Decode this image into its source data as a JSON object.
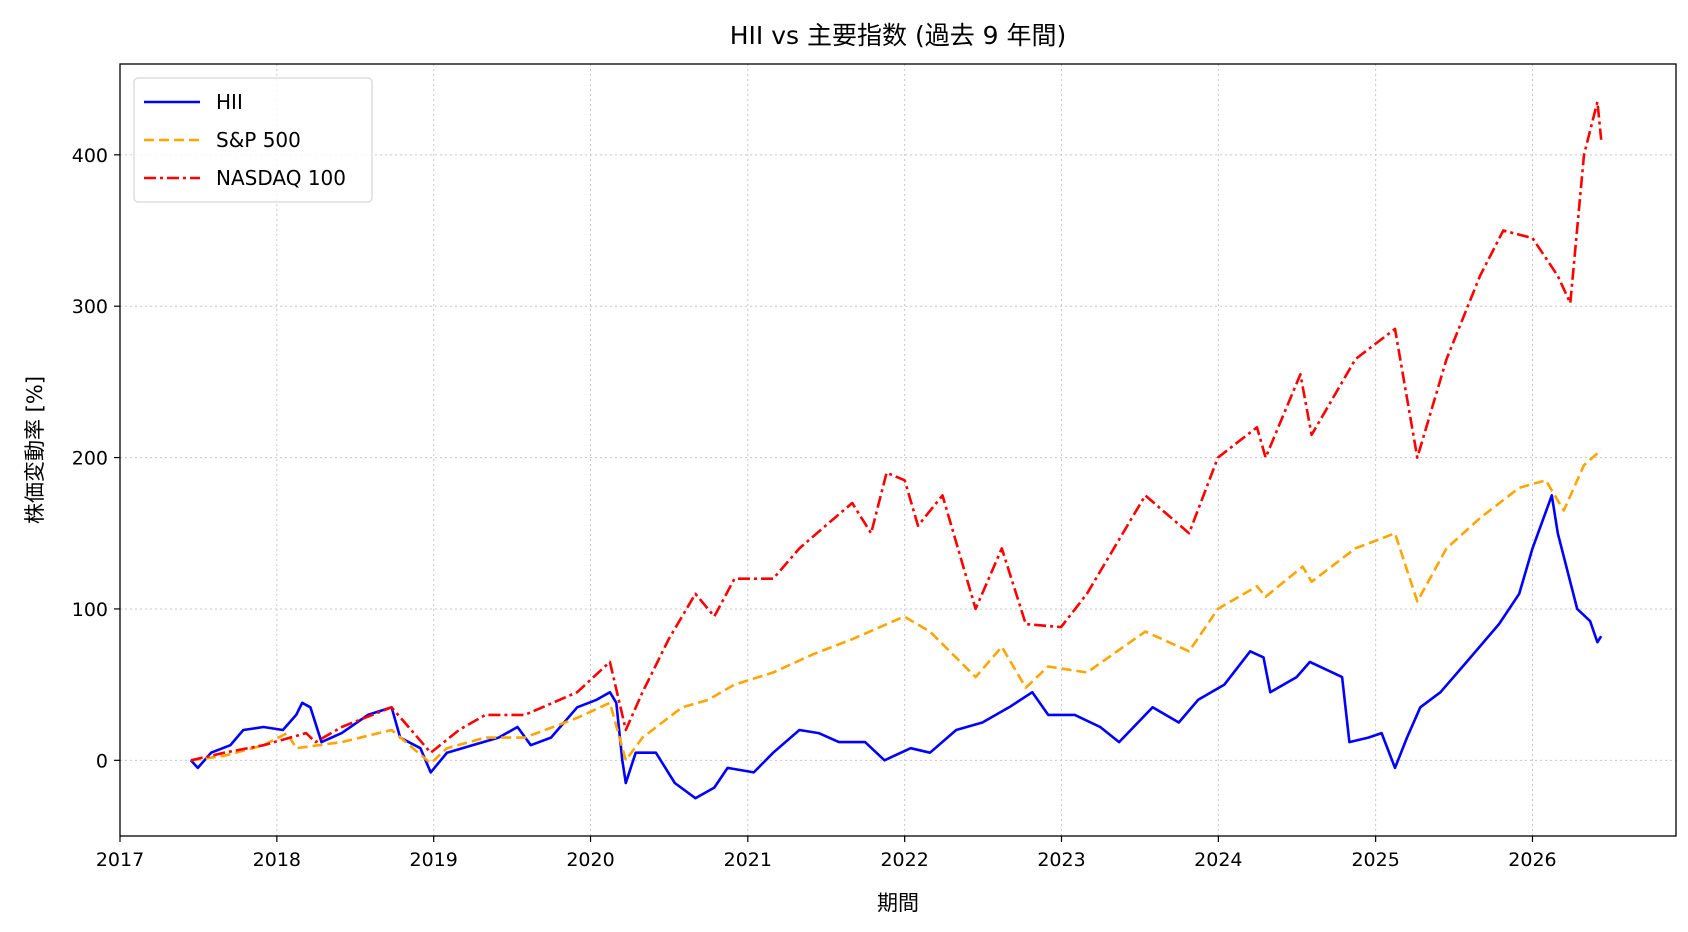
{
  "chart_data": {
    "type": "line",
    "title": "HII vs 主要指数 (過去 9 年間)",
    "xlabel": "期間",
    "ylabel": "株価変動率 [%]",
    "xlim": [
      "2017-01-01",
      "2026-12-01"
    ],
    "ylim": [
      -50,
      460
    ],
    "x_ticks": [
      "2017",
      "2018",
      "2019",
      "2020",
      "2021",
      "2022",
      "2023",
      "2024",
      "2025",
      "2026"
    ],
    "y_ticks": [
      0,
      100,
      200,
      300,
      400
    ],
    "grid": true,
    "legend_position": "top-left",
    "series": [
      {
        "name": "HII",
        "color": "#0000ff",
        "style": "solid",
        "points": [
          [
            "2017-06-15",
            0
          ],
          [
            "2017-07-01",
            -5
          ],
          [
            "2017-08-01",
            5
          ],
          [
            "2017-09-15",
            10
          ],
          [
            "2017-10-15",
            20
          ],
          [
            "2017-12-01",
            22
          ],
          [
            "2018-01-15",
            20
          ],
          [
            "2018-02-15",
            30
          ],
          [
            "2018-03-01",
            38
          ],
          [
            "2018-03-20",
            35
          ],
          [
            "2018-04-15",
            12
          ],
          [
            "2018-06-01",
            18
          ],
          [
            "2018-08-01",
            30
          ],
          [
            "2018-09-25",
            35
          ],
          [
            "2018-10-15",
            15
          ],
          [
            "2018-12-01",
            8
          ],
          [
            "2018-12-25",
            -8
          ],
          [
            "2019-02-01",
            5
          ],
          [
            "2019-04-01",
            10
          ],
          [
            "2019-06-01",
            15
          ],
          [
            "2019-07-15",
            22
          ],
          [
            "2019-08-15",
            10
          ],
          [
            "2019-10-01",
            15
          ],
          [
            "2019-12-01",
            35
          ],
          [
            "2020-01-15",
            40
          ],
          [
            "2020-02-15",
            45
          ],
          [
            "2020-03-01",
            38
          ],
          [
            "2020-03-15",
            0
          ],
          [
            "2020-03-23",
            -15
          ],
          [
            "2020-04-15",
            5
          ],
          [
            "2020-06-01",
            5
          ],
          [
            "2020-07-15",
            -15
          ],
          [
            "2020-09-01",
            -25
          ],
          [
            "2020-10-15",
            -18
          ],
          [
            "2020-11-15",
            -5
          ],
          [
            "2021-01-15",
            -8
          ],
          [
            "2021-03-01",
            5
          ],
          [
            "2021-05-01",
            20
          ],
          [
            "2021-06-15",
            18
          ],
          [
            "2021-08-01",
            12
          ],
          [
            "2021-10-01",
            12
          ],
          [
            "2021-11-15",
            0
          ],
          [
            "2022-01-15",
            8
          ],
          [
            "2022-03-01",
            5
          ],
          [
            "2022-05-01",
            20
          ],
          [
            "2022-07-01",
            25
          ],
          [
            "2022-09-01",
            35
          ],
          [
            "2022-10-25",
            45
          ],
          [
            "2022-12-01",
            30
          ],
          [
            "2023-02-01",
            30
          ],
          [
            "2023-04-01",
            22
          ],
          [
            "2023-05-15",
            12
          ],
          [
            "2023-08-01",
            35
          ],
          [
            "2023-10-01",
            25
          ],
          [
            "2023-11-15",
            40
          ],
          [
            "2024-01-15",
            50
          ],
          [
            "2024-03-15",
            72
          ],
          [
            "2024-04-15",
            68
          ],
          [
            "2024-05-01",
            45
          ],
          [
            "2024-07-01",
            55
          ],
          [
            "2024-08-01",
            65
          ],
          [
            "2024-10-15",
            55
          ],
          [
            "2024-11-01",
            12
          ],
          [
            "2024-12-15",
            15
          ],
          [
            "2025-01-15",
            18
          ],
          [
            "2025-02-15",
            -5
          ],
          [
            "2025-03-15",
            15
          ],
          [
            "2025-04-15",
            35
          ],
          [
            "2025-06-01",
            45
          ],
          [
            "2025-08-01",
            65
          ],
          [
            "2025-10-15",
            90
          ],
          [
            "2025-12-01",
            110
          ],
          [
            "2026-01-01",
            140
          ],
          [
            "2026-02-15",
            175
          ],
          [
            "2026-03-01",
            150
          ],
          [
            "2026-04-15",
            100
          ],
          [
            "2026-05-15",
            92
          ],
          [
            "2026-06-01",
            78
          ],
          [
            "2026-06-10",
            82
          ]
        ]
      },
      {
        "name": "S&P 500",
        "color": "#ffa500",
        "style": "dashed",
        "points": [
          [
            "2017-06-15",
            0
          ],
          [
            "2017-09-01",
            3
          ],
          [
            "2017-12-01",
            10
          ],
          [
            "2018-01-25",
            18
          ],
          [
            "2018-02-15",
            8
          ],
          [
            "2018-06-01",
            12
          ],
          [
            "2018-09-25",
            20
          ],
          [
            "2018-12-25",
            -2
          ],
          [
            "2019-02-01",
            8
          ],
          [
            "2019-05-01",
            15
          ],
          [
            "2019-08-01",
            15
          ],
          [
            "2019-12-01",
            28
          ],
          [
            "2020-02-15",
            38
          ],
          [
            "2020-03-23",
            0
          ],
          [
            "2020-05-01",
            15
          ],
          [
            "2020-08-01",
            35
          ],
          [
            "2020-10-01",
            40
          ],
          [
            "2020-12-01",
            50
          ],
          [
            "2021-03-01",
            58
          ],
          [
            "2021-06-01",
            70
          ],
          [
            "2021-09-01",
            80
          ],
          [
            "2021-12-31",
            95
          ],
          [
            "2022-03-01",
            85
          ],
          [
            "2022-06-15",
            55
          ],
          [
            "2022-08-15",
            75
          ],
          [
            "2022-10-10",
            48
          ],
          [
            "2022-12-01",
            62
          ],
          [
            "2023-03-01",
            58
          ],
          [
            "2023-07-15",
            85
          ],
          [
            "2023-10-25",
            72
          ],
          [
            "2023-12-31",
            100
          ],
          [
            "2024-03-31",
            115
          ],
          [
            "2024-04-20",
            108
          ],
          [
            "2024-07-15",
            128
          ],
          [
            "2024-08-05",
            118
          ],
          [
            "2024-11-15",
            140
          ],
          [
            "2025-02-15",
            150
          ],
          [
            "2025-04-08",
            105
          ],
          [
            "2025-06-15",
            140
          ],
          [
            "2025-09-01",
            160
          ],
          [
            "2025-12-01",
            180
          ],
          [
            "2026-02-01",
            185
          ],
          [
            "2026-03-15",
            165
          ],
          [
            "2026-05-01",
            195
          ],
          [
            "2026-06-10",
            205
          ]
        ]
      },
      {
        "name": "NASDAQ 100",
        "color": "#ff0000",
        "style": "dashdot",
        "points": [
          [
            "2017-06-15",
            0
          ],
          [
            "2017-09-01",
            5
          ],
          [
            "2017-12-01",
            10
          ],
          [
            "2018-03-10",
            18
          ],
          [
            "2018-04-01",
            12
          ],
          [
            "2018-06-01",
            22
          ],
          [
            "2018-09-25",
            35
          ],
          [
            "2018-12-25",
            5
          ],
          [
            "2019-03-01",
            20
          ],
          [
            "2019-05-01",
            30
          ],
          [
            "2019-08-01",
            30
          ],
          [
            "2019-12-01",
            45
          ],
          [
            "2020-02-15",
            65
          ],
          [
            "2020-03-23",
            20
          ],
          [
            "2020-05-01",
            45
          ],
          [
            "2020-07-01",
            80
          ],
          [
            "2020-09-01",
            110
          ],
          [
            "2020-10-15",
            95
          ],
          [
            "2020-12-01",
            120
          ],
          [
            "2021-03-01",
            120
          ],
          [
            "2021-05-01",
            140
          ],
          [
            "2021-07-01",
            155
          ],
          [
            "2021-09-01",
            170
          ],
          [
            "2021-10-15",
            150
          ],
          [
            "2021-11-20",
            190
          ],
          [
            "2022-01-01",
            185
          ],
          [
            "2022-02-01",
            155
          ],
          [
            "2022-03-30",
            175
          ],
          [
            "2022-06-15",
            100
          ],
          [
            "2022-08-15",
            140
          ],
          [
            "2022-10-10",
            90
          ],
          [
            "2022-12-31",
            88
          ],
          [
            "2023-03-01",
            110
          ],
          [
            "2023-07-15",
            175
          ],
          [
            "2023-10-25",
            150
          ],
          [
            "2023-12-31",
            200
          ],
          [
            "2024-03-31",
            220
          ],
          [
            "2024-04-20",
            200
          ],
          [
            "2024-07-10",
            255
          ],
          [
            "2024-08-05",
            215
          ],
          [
            "2024-11-15",
            265
          ],
          [
            "2025-02-15",
            285
          ],
          [
            "2025-04-08",
            200
          ],
          [
            "2025-06-15",
            265
          ],
          [
            "2025-09-01",
            320
          ],
          [
            "2025-10-25",
            350
          ],
          [
            "2026-01-01",
            345
          ],
          [
            "2026-03-01",
            320
          ],
          [
            "2026-03-30",
            302
          ],
          [
            "2026-05-01",
            400
          ],
          [
            "2026-06-01",
            435
          ],
          [
            "2026-06-10",
            410
          ]
        ]
      }
    ]
  }
}
